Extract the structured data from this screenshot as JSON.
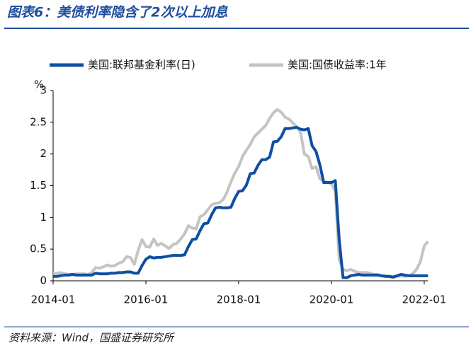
{
  "chart_data": {
    "type": "line",
    "title": "图表6：美债利率隐含了2次以上加息",
    "source": "资料来源：Wind，国盛证券研究所",
    "y_label": "%",
    "x": [
      "2014-01",
      "2014-02",
      "2014-03",
      "2014-04",
      "2014-05",
      "2014-06",
      "2014-07",
      "2014-08",
      "2014-09",
      "2014-10",
      "2014-11",
      "2014-12",
      "2015-01",
      "2015-02",
      "2015-03",
      "2015-04",
      "2015-05",
      "2015-06",
      "2015-07",
      "2015-08",
      "2015-09",
      "2015-10",
      "2015-11",
      "2015-12",
      "2016-01",
      "2016-02",
      "2016-03",
      "2016-04",
      "2016-05",
      "2016-06",
      "2016-07",
      "2016-08",
      "2016-09",
      "2016-10",
      "2016-11",
      "2016-12",
      "2017-01",
      "2017-02",
      "2017-03",
      "2017-04",
      "2017-05",
      "2017-06",
      "2017-07",
      "2017-08",
      "2017-09",
      "2017-10",
      "2017-11",
      "2017-12",
      "2018-01",
      "2018-02",
      "2018-03",
      "2018-04",
      "2018-05",
      "2018-06",
      "2018-07",
      "2018-08",
      "2018-09",
      "2018-10",
      "2018-11",
      "2018-12",
      "2019-01",
      "2019-02",
      "2019-03",
      "2019-04",
      "2019-05",
      "2019-06",
      "2019-07",
      "2019-08",
      "2019-09",
      "2019-10",
      "2019-11",
      "2019-12",
      "2020-01",
      "2020-02",
      "2020-03",
      "2020-04",
      "2020-05",
      "2020-06",
      "2020-07",
      "2020-08",
      "2020-09",
      "2020-10",
      "2020-11",
      "2020-12",
      "2021-01",
      "2021-02",
      "2021-03",
      "2021-04",
      "2021-05",
      "2021-06",
      "2021-07",
      "2021-08",
      "2021-09",
      "2021-10",
      "2021-11",
      "2021-12",
      "2022-01",
      "2022-02"
    ],
    "xticks": [
      "2014-01",
      "2016-01",
      "2018-01",
      "2020-01",
      "2022-01"
    ],
    "ylim": [
      0,
      3
    ],
    "yticks": [
      0,
      0.5,
      1,
      1.5,
      2,
      2.5,
      3
    ],
    "series": [
      {
        "name": "美国:联邦基金利率(日)",
        "color": "#0f4ea3",
        "values": [
          0.07,
          0.07,
          0.08,
          0.09,
          0.09,
          0.1,
          0.09,
          0.09,
          0.09,
          0.09,
          0.09,
          0.12,
          0.11,
          0.11,
          0.11,
          0.12,
          0.12,
          0.13,
          0.13,
          0.14,
          0.14,
          0.12,
          0.12,
          0.24,
          0.34,
          0.38,
          0.36,
          0.37,
          0.37,
          0.38,
          0.39,
          0.4,
          0.4,
          0.4,
          0.41,
          0.54,
          0.65,
          0.66,
          0.79,
          0.9,
          0.91,
          1.04,
          1.15,
          1.16,
          1.15,
          1.15,
          1.16,
          1.3,
          1.41,
          1.42,
          1.51,
          1.69,
          1.7,
          1.82,
          1.91,
          1.91,
          1.95,
          2.19,
          2.2,
          2.27,
          2.4,
          2.4,
          2.41,
          2.42,
          2.39,
          2.38,
          2.4,
          2.13,
          2.04,
          1.83,
          1.55,
          1.55,
          1.55,
          1.58,
          0.65,
          0.05,
          0.05,
          0.08,
          0.09,
          0.1,
          0.09,
          0.09,
          0.09,
          0.09,
          0.09,
          0.08,
          0.07,
          0.07,
          0.06,
          0.08,
          0.1,
          0.09,
          0.08,
          0.08,
          0.08,
          0.08,
          0.08,
          0.08
        ]
      },
      {
        "name": "美国:国债收益率:1年",
        "color": "#c4c4c4",
        "values": [
          0.12,
          0.12,
          0.13,
          0.11,
          0.1,
          0.1,
          0.11,
          0.11,
          0.11,
          0.1,
          0.13,
          0.21,
          0.2,
          0.22,
          0.25,
          0.23,
          0.24,
          0.28,
          0.3,
          0.38,
          0.37,
          0.26,
          0.48,
          0.65,
          0.54,
          0.53,
          0.66,
          0.56,
          0.59,
          0.55,
          0.51,
          0.57,
          0.59,
          0.66,
          0.74,
          0.87,
          0.83,
          0.82,
          1.01,
          1.04,
          1.12,
          1.2,
          1.22,
          1.23,
          1.28,
          1.4,
          1.56,
          1.7,
          1.8,
          1.96,
          2.06,
          2.15,
          2.27,
          2.33,
          2.39,
          2.45,
          2.56,
          2.65,
          2.7,
          2.66,
          2.58,
          2.55,
          2.49,
          2.43,
          2.34,
          2.0,
          1.96,
          1.77,
          1.8,
          1.61,
          1.57,
          1.55,
          1.53,
          1.41,
          0.33,
          0.18,
          0.16,
          0.18,
          0.15,
          0.13,
          0.13,
          0.13,
          0.12,
          0.1,
          0.1,
          0.07,
          0.08,
          0.06,
          0.05,
          0.07,
          0.08,
          0.07,
          0.08,
          0.11,
          0.18,
          0.3,
          0.55,
          0.62
        ]
      }
    ]
  }
}
